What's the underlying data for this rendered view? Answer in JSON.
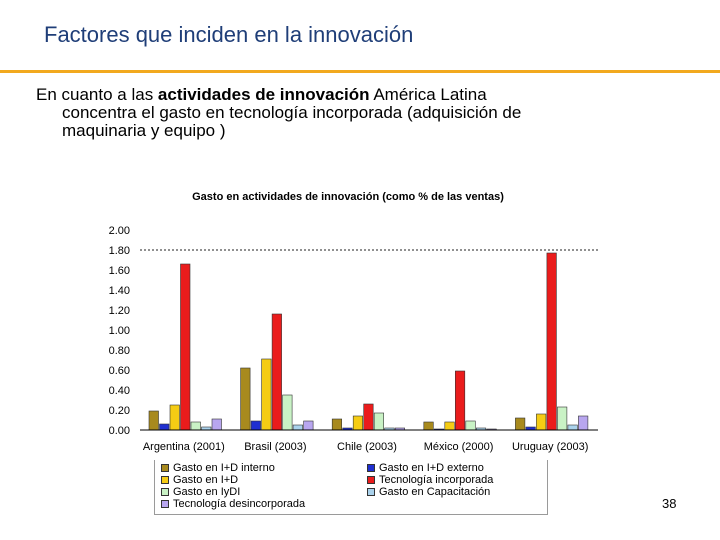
{
  "slide": {
    "title": "Factores que inciden en la innovación",
    "text_before": "En cuanto a las ",
    "text_bold": "actividades de innovación",
    "text_after": " América Latina",
    "text_line2": "concentra el gasto en tecnología incorporada (adquisición de",
    "text_line3": "maquinaria y equipo )",
    "page_number": "38"
  },
  "chart_data": {
    "type": "bar",
    "title": "Gasto en actividades de innovación (como % de las ventas)",
    "xlabel": "",
    "ylabel": "",
    "ylim": [
      0,
      2.0
    ],
    "yticks": [
      "0.00",
      "0.20",
      "0.40",
      "0.60",
      "0.80",
      "1.00",
      "1.20",
      "1.40",
      "1.60",
      "1.80",
      "2.00"
    ],
    "reference_line": 1.8,
    "categories": [
      "Argentina (2001)",
      "Brasil (2003)",
      "Chile (2003)",
      "México (2000)",
      "Uruguay (2003)"
    ],
    "series": [
      {
        "name": "Gasto en I+D interno",
        "color": "#a88a1e",
        "values": [
          0.19,
          0.62,
          0.11,
          0.08,
          0.12
        ]
      },
      {
        "name": "Gasto en I+D externo",
        "color": "#1f2fd0",
        "values": [
          0.06,
          0.09,
          0.02,
          0.01,
          0.03
        ]
      },
      {
        "name": "Gasto en I+D",
        "color": "#f5cc14",
        "values": [
          0.25,
          0.71,
          0.14,
          0.08,
          0.16
        ]
      },
      {
        "name": "Tecnología incorporada",
        "color": "#ea1c1c",
        "values": [
          1.66,
          1.16,
          0.26,
          0.59,
          1.77
        ]
      },
      {
        "name": "Gasto en IyDI",
        "color": "#c9f2c5",
        "values": [
          0.08,
          0.35,
          0.17,
          0.09,
          0.23
        ]
      },
      {
        "name": "Gasto en Capacitación",
        "color": "#aad2ec",
        "values": [
          0.03,
          0.05,
          0.02,
          0.02,
          0.05
        ]
      },
      {
        "name": "Tecnología desincorporada",
        "color": "#b8a6ef",
        "values": [
          0.11,
          0.09,
          0.02,
          0.01,
          0.14
        ]
      }
    ]
  }
}
